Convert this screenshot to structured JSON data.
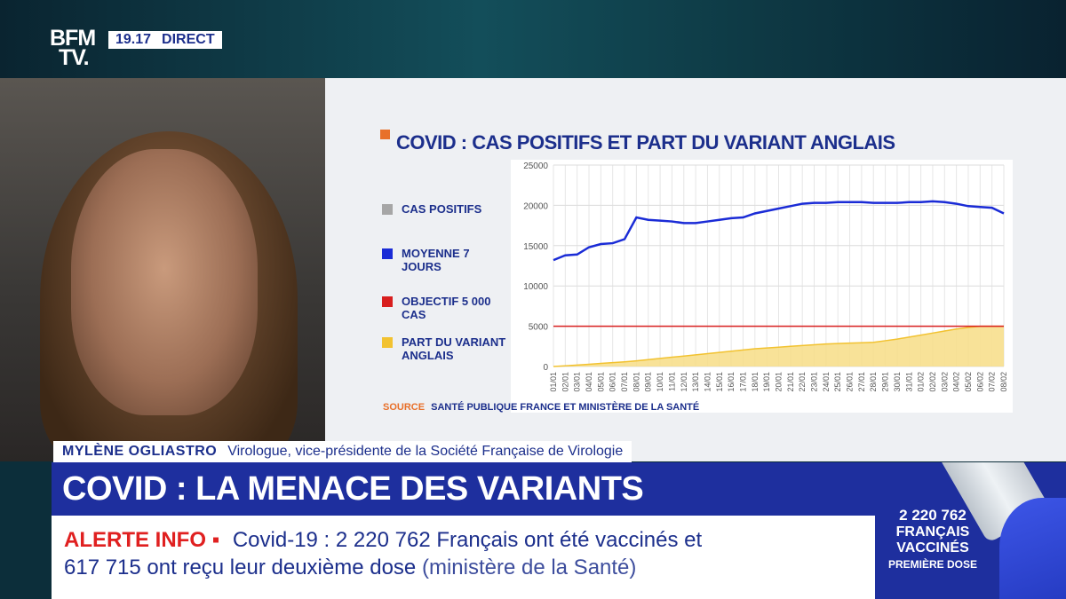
{
  "channel": {
    "logo_line1": "BFM",
    "logo_line2": "TV.",
    "time": "19.17",
    "live": "DIRECT"
  },
  "chart": {
    "title": "COVID : CAS POSITIFS ET PART DU VARIANT ANGLAIS",
    "legend": [
      {
        "label": "CAS POSITIFS",
        "color": "#a6a6a6"
      },
      {
        "label": "MOYENNE 7 JOURS",
        "color": "#1a2bd6"
      },
      {
        "label": "OBJECTIF 5 000 CAS",
        "color": "#d81e1e"
      },
      {
        "label": "PART DU VARIANT ANGLAIS",
        "color": "#f2c230"
      }
    ],
    "source_key": "SOURCE",
    "source_text": "SANTÉ PUBLIQUE FRANCE ET MINISTÈRE DE LA SANTÉ"
  },
  "chart_data": {
    "type": "line",
    "title": "COVID : CAS POSITIFS ET PART DU VARIANT ANGLAIS",
    "ylim": [
      0,
      25000
    ],
    "yticks": [
      0,
      5000,
      10000,
      15000,
      20000,
      25000
    ],
    "x": [
      "01/01",
      "02/01",
      "03/01",
      "04/01",
      "05/01",
      "06/01",
      "07/01",
      "08/01",
      "09/01",
      "10/01",
      "11/01",
      "12/01",
      "13/01",
      "14/01",
      "15/01",
      "16/01",
      "17/01",
      "18/01",
      "19/01",
      "20/01",
      "21/01",
      "22/01",
      "23/01",
      "24/01",
      "25/01",
      "26/01",
      "27/01",
      "28/01",
      "29/01",
      "30/01",
      "31/01",
      "01/02",
      "02/02",
      "03/02",
      "04/02",
      "05/02",
      "06/02",
      "07/02",
      "08/02"
    ],
    "series": [
      {
        "name": "MOYENNE 7 JOURS",
        "color": "#1a2bd6",
        "values": [
          13200,
          13800,
          13900,
          14800,
          15200,
          15300,
          15800,
          18500,
          18200,
          18100,
          18000,
          17800,
          17800,
          18000,
          18200,
          18400,
          18500,
          19000,
          19300,
          19600,
          19900,
          20200,
          20300,
          20300,
          20400,
          20400,
          20400,
          20300,
          20300,
          20300,
          20400,
          20400,
          20500,
          20400,
          20200,
          19900,
          19800,
          19700,
          19000
        ]
      },
      {
        "name": "OBJECTIF 5 000 CAS",
        "color": "#d81e1e",
        "values": [
          5000,
          5000,
          5000,
          5000,
          5000,
          5000,
          5000,
          5000,
          5000,
          5000,
          5000,
          5000,
          5000,
          5000,
          5000,
          5000,
          5000,
          5000,
          5000,
          5000,
          5000,
          5000,
          5000,
          5000,
          5000,
          5000,
          5000,
          5000,
          5000,
          5000,
          5000,
          5000,
          5000,
          5000,
          5000,
          5000,
          5000,
          5000,
          5000
        ]
      },
      {
        "name": "PART DU VARIANT ANGLAIS",
        "color": "#f2c230",
        "values": [
          0,
          80,
          180,
          280,
          380,
          480,
          580,
          700,
          850,
          1000,
          1150,
          1300,
          1450,
          1600,
          1750,
          1900,
          2050,
          2200,
          2300,
          2400,
          2500,
          2600,
          2700,
          2800,
          2850,
          2900,
          2950,
          3000,
          3200,
          3400,
          3650,
          3900,
          4150,
          4400,
          4650,
          4850,
          5000,
          5000,
          5000
        ]
      }
    ]
  },
  "lower_third": {
    "name": "MYLÈNE OGLIASTRO",
    "role": "Virologue, vice-présidente de la Société Française de Virologie",
    "headline": "COVID : LA MENACE DES VARIANTS"
  },
  "ticker": {
    "label": "ALERTE INFO ▪",
    "line1": "Covid-19 : 2 220 762 Français ont été vaccinés et",
    "line2": "617 715 ont reçu leur deuxième dose",
    "line2_paren": "(ministère de la Santé)"
  },
  "side_stat": {
    "number": "2 220 762",
    "line1": "FRANÇAIS",
    "line2": "VACCINÉS",
    "line3": "PREMIÈRE DOSE"
  }
}
